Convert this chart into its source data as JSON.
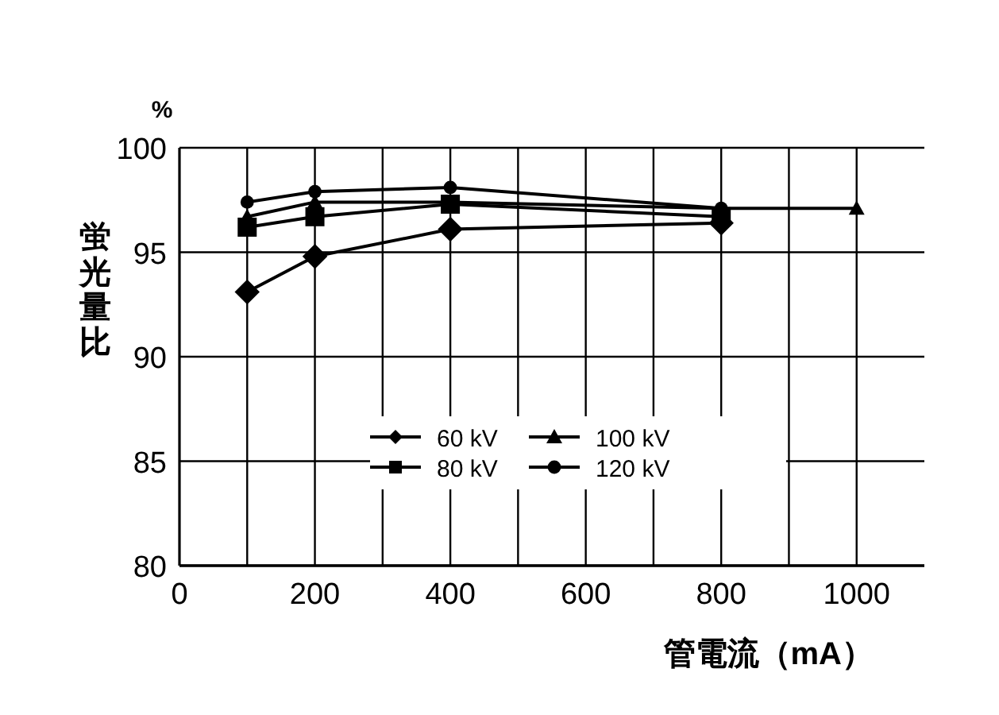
{
  "chart_data": {
    "type": "line",
    "ylabel": "蛍光量比",
    "xlabel": "管電流（mA）",
    "annotations": [
      "%"
    ],
    "xlim": [
      0,
      1100
    ],
    "xticks": [
      0,
      {
        "value": 100,
        "label": null
      },
      200,
      {
        "value": 300,
        "label": null
      },
      400,
      {
        "value": 500,
        "label": null
      },
      600,
      {
        "value": 700,
        "label": null
      },
      800,
      {
        "value": 900,
        "label": null
      },
      1000
    ],
    "ylim": [
      80,
      100
    ],
    "yticks": [
      80,
      85,
      90,
      95,
      100
    ],
    "grid": true,
    "legend": "bottom",
    "line_style": "solid",
    "series": [
      {
        "name": "60 kV",
        "color": "#000000",
        "marker": "diamond",
        "x": [
          100,
          200,
          400,
          800
        ],
        "values": [
          93.1,
          94.8,
          96.1,
          96.4
        ]
      },
      {
        "name": "80 kV",
        "color": "#000000",
        "marker": "square",
        "x": [
          100,
          200,
          400,
          800
        ],
        "values": [
          96.2,
          96.7,
          97.3,
          96.7
        ]
      },
      {
        "name": "100 kV",
        "color": "#000000",
        "marker": "triangle",
        "x": [
          100,
          200,
          400,
          800,
          1000
        ],
        "values": [
          96.7,
          97.4,
          97.4,
          97.1,
          97.1
        ]
      },
      {
        "name": "120 kV",
        "color": "#000000",
        "marker": "circle",
        "x": [
          100,
          200,
          400,
          800
        ],
        "values": [
          97.4,
          97.9,
          98.1,
          97.1
        ]
      }
    ]
  }
}
